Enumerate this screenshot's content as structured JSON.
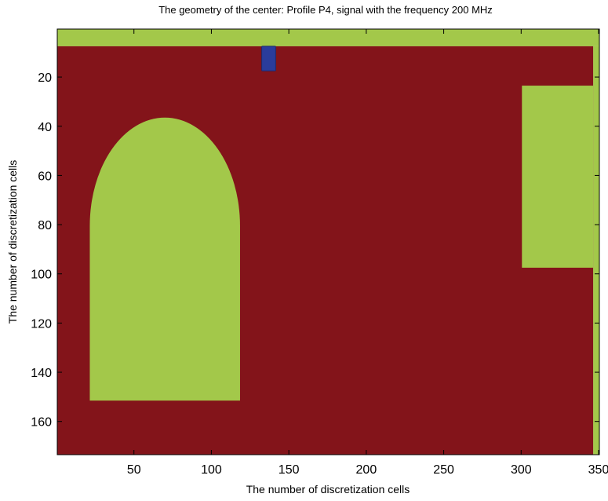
{
  "chart_data": {
    "type": "heatmap",
    "title": "The geometry of the center: Profile P4, signal with the frequency 200 MHz",
    "xlabel": "The number of discretization cells",
    "ylabel": "The number of discretization cells",
    "xlim": [
      0.5,
      350.5
    ],
    "ylim": [
      0.5,
      173.5
    ],
    "y_reversed": true,
    "x_ticks": [
      50,
      100,
      150,
      200,
      250,
      300,
      350
    ],
    "y_ticks": [
      20,
      40,
      60,
      80,
      100,
      120,
      140,
      160
    ],
    "colors": {
      "air": "#a3c84a",
      "medium": "#83141a",
      "antenna": "#2a3c9c"
    },
    "regions": [
      {
        "name": "air-top-strip",
        "color_key": "air",
        "shape": "rect",
        "x": [
          0.5,
          350.5
        ],
        "y": [
          0.5,
          7.5
        ]
      },
      {
        "name": "air-right-edge",
        "color_key": "air",
        "shape": "rect",
        "x": [
          346.5,
          350.5
        ],
        "y": [
          7.5,
          173.5
        ]
      },
      {
        "name": "medium-body",
        "color_key": "medium",
        "shape": "rect",
        "x": [
          0.5,
          346.5
        ],
        "y": [
          7.5,
          173.5
        ]
      },
      {
        "name": "arched-cavity",
        "color_key": "air",
        "shape": "arch",
        "x": [
          21.5,
          118.5
        ],
        "y": [
          36.5,
          151.5
        ],
        "arch_base_y": 80.5
      },
      {
        "name": "right-cavity",
        "color_key": "air",
        "shape": "rect",
        "x": [
          300.5,
          346.5
        ],
        "y": [
          23.5,
          97.5
        ]
      },
      {
        "name": "antenna",
        "color_key": "antenna",
        "shape": "rect",
        "x": [
          132.5,
          141.5
        ],
        "y": [
          7.5,
          17.5
        ]
      }
    ]
  }
}
